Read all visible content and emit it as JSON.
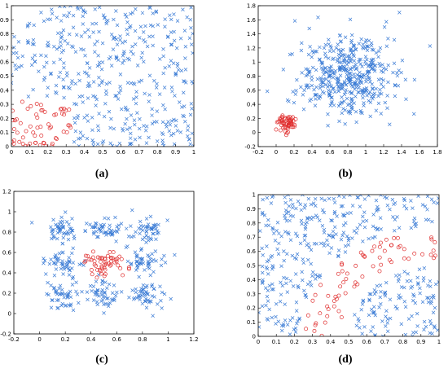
{
  "captions": {
    "a": "(a)",
    "b": "(b)",
    "c": "(c)",
    "d": "(d)"
  },
  "colors": {
    "class1": "#3a7bd5",
    "class2": "#e03030"
  },
  "chart_data": [
    {
      "type": "scatter",
      "id": "a",
      "xlim": [
        0,
        1
      ],
      "ylim": [
        0,
        1
      ],
      "xticks": [
        "0",
        "0.1",
        "0.2",
        "0.3",
        "0.4",
        "0.5",
        "0.6",
        "0.7",
        "0.8",
        "0.9",
        "1"
      ],
      "xtick_values": [
        0,
        0.1,
        0.2,
        0.3,
        0.4,
        0.5,
        0.6,
        0.7,
        0.8,
        0.9,
        1
      ],
      "yticks": [
        "0",
        "0.1",
        "0.2",
        "0.3",
        "0.4",
        "0.5",
        "0.6",
        "0.7",
        "0.8",
        "0.9",
        "1"
      ],
      "ytick_values": [
        0,
        0.1,
        0.2,
        0.3,
        0.4,
        0.5,
        0.6,
        0.7,
        0.8,
        0.9,
        1
      ],
      "series": [
        {
          "marker": "x",
          "color": "#3a7bd5",
          "distribution": "uniform square excluding lower-left corner",
          "count": 420
        },
        {
          "marker": "o",
          "color": "#e03030",
          "distribution": "uniform in corner [0,0.33]x[0,0.33]",
          "count": 60
        }
      ]
    },
    {
      "type": "scatter",
      "id": "b",
      "xlim": [
        -0.2,
        1.8
      ],
      "ylim": [
        -0.2,
        1.8
      ],
      "xticks": [
        "-0.2",
        "0",
        "0.2",
        "0.4",
        "0.6",
        "0.8",
        "1",
        "1.2",
        "1.4",
        "1.6",
        "1.8"
      ],
      "xtick_values": [
        -0.2,
        0,
        0.2,
        0.4,
        0.6,
        0.8,
        1,
        1.2,
        1.4,
        1.6,
        1.8
      ],
      "yticks": [
        "-0.2",
        "0",
        "0.2",
        "0.4",
        "0.6",
        "0.8",
        "1",
        "1.2",
        "1.4",
        "1.6",
        "1.8"
      ],
      "ytick_values": [
        -0.2,
        0,
        0.2,
        0.4,
        0.6,
        0.8,
        1,
        1.2,
        1.4,
        1.6,
        1.8
      ],
      "series": [
        {
          "marker": "x",
          "color": "#3a7bd5",
          "distribution": "gaussian cluster",
          "center": [
            0.8,
            0.8
          ],
          "spread": [
            0.28,
            0.3
          ],
          "count": 450
        },
        {
          "marker": "o",
          "color": "#e03030",
          "distribution": "gaussian cluster",
          "center": [
            0.12,
            0.13
          ],
          "spread": [
            0.06,
            0.06
          ],
          "count": 60
        }
      ]
    },
    {
      "type": "scatter",
      "id": "c",
      "xlim": [
        -0.2,
        1.2
      ],
      "ylim": [
        -0.2,
        1.2
      ],
      "xticks": [
        "-0.2",
        "0",
        "0.2",
        "0.4",
        "0.6",
        "0.8",
        "1",
        "1.2"
      ],
      "xtick_values": [
        -0.2,
        0,
        0.2,
        0.4,
        0.6,
        0.8,
        1,
        1.2
      ],
      "yticks": [
        "-0.2",
        "0",
        "0.2",
        "0.4",
        "0.6",
        "0.8",
        "1",
        "1.2"
      ],
      "ytick_values": [
        -0.2,
        0,
        0.2,
        0.4,
        0.6,
        0.8,
        1,
        1.2
      ],
      "series": [
        {
          "marker": "x",
          "color": "#3a7bd5",
          "distribution": "8 gaussian clusters around ring",
          "centers": [
            [
              0.18,
              0.82
            ],
            [
              0.5,
              0.82
            ],
            [
              0.82,
              0.82
            ],
            [
              0.18,
              0.5
            ],
            [
              0.82,
              0.5
            ],
            [
              0.18,
              0.18
            ],
            [
              0.5,
              0.18
            ],
            [
              0.82,
              0.18
            ]
          ],
          "spread": 0.07,
          "count": 400
        },
        {
          "marker": "o",
          "color": "#e03030",
          "distribution": "gaussian cluster",
          "center": [
            0.5,
            0.5
          ],
          "spread": [
            0.07,
            0.06
          ],
          "count": 55
        }
      ]
    },
    {
      "type": "scatter",
      "id": "d",
      "xlim": [
        0,
        1
      ],
      "ylim": [
        0,
        1
      ],
      "xticks": [
        "0",
        "0.1",
        "0.2",
        "0.3",
        "0.4",
        "0.5",
        "0.6",
        "0.7",
        "0.8",
        "0.9",
        "1"
      ],
      "xtick_values": [
        0,
        0.1,
        0.2,
        0.3,
        0.4,
        0.5,
        0.6,
        0.7,
        0.8,
        0.9,
        1
      ],
      "yticks": [
        "0",
        "0.1",
        "0.2",
        "0.3",
        "0.4",
        "0.5",
        "0.6",
        "0.7",
        "0.8",
        "0.9",
        "1"
      ],
      "ytick_values": [
        0,
        0.1,
        0.2,
        0.3,
        0.4,
        0.5,
        0.6,
        0.7,
        0.8,
        0.9,
        1
      ],
      "series": [
        {
          "marker": "x",
          "color": "#3a7bd5",
          "distribution": "uniform square excluding lower-right quarter ring",
          "count": 420
        },
        {
          "marker": "o",
          "color": "#e03030",
          "distribution": "ring band around (1,0) radius 0.55-0.75",
          "count": 70
        }
      ]
    }
  ]
}
